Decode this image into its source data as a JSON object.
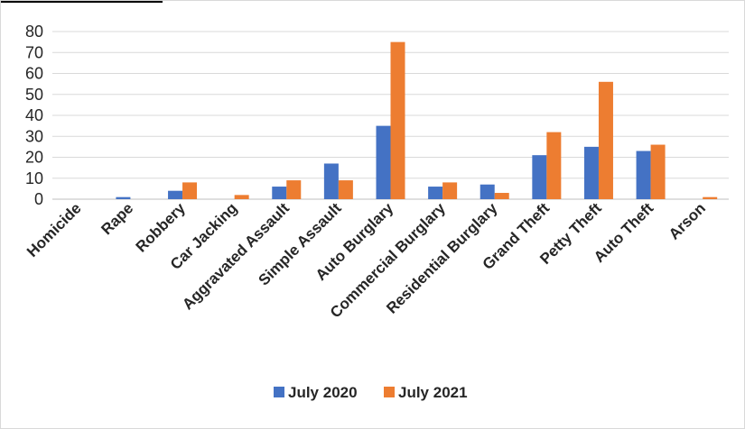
{
  "chart_data": {
    "type": "bar",
    "title": "",
    "xlabel": "",
    "ylabel": "",
    "ylim": [
      0,
      80
    ],
    "yticks": [
      0,
      10,
      20,
      30,
      40,
      50,
      60,
      70,
      80
    ],
    "grid": true,
    "legend_position": "bottom",
    "categories": [
      "Homicide",
      "Rape",
      "Robbery",
      "Car Jacking",
      "Aggravated Assault",
      "Simple Assault",
      "Auto Burglary",
      "Commercial Burglary",
      "Residential Burglary",
      "Grand Theft",
      "Petty Theft",
      "Auto Theft",
      "Arson"
    ],
    "series": [
      {
        "name": "July 2020",
        "color": "#4472c4",
        "values": [
          0,
          1,
          4,
          0,
          6,
          17,
          35,
          6,
          7,
          21,
          25,
          23,
          0
        ]
      },
      {
        "name": "July 2021",
        "color": "#ed7d31",
        "values": [
          0,
          0,
          8,
          2,
          9,
          9,
          75,
          8,
          3,
          32,
          56,
          26,
          1
        ]
      }
    ]
  }
}
